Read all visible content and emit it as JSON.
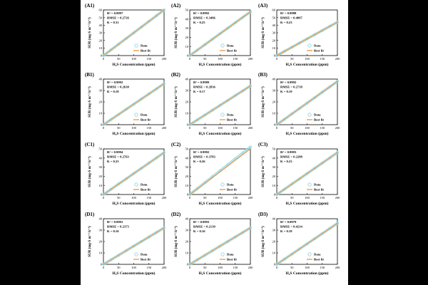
{
  "figure": {
    "xlabel": "H₂S Concentration (ppm)",
    "ylabel": "SUR (mg-S m⁻² h⁻¹)",
    "xticks": [
      "0",
      "50",
      "100",
      "150",
      "200"
    ],
    "legend": {
      "data": "Data",
      "fit": "Best fit"
    },
    "colors": {
      "data": "#9adbe4",
      "fit": "#f08a2c",
      "axis": "#000000",
      "page": "#000000"
    }
  },
  "chart_data": [
    {
      "panel": "(A1)",
      "type": "scatter",
      "ylim": [
        0,
        60
      ],
      "yticks": [
        0,
        10,
        20,
        30,
        40,
        50,
        60
      ],
      "stats": [
        "R² = 0.9997",
        "RMSE = 0.2726",
        "K = 0.31"
      ],
      "x": [
        0,
        25,
        50,
        75,
        100,
        125,
        150,
        175,
        200
      ],
      "y": [
        0,
        7.5,
        15,
        22.5,
        30,
        37.5,
        45,
        52.5,
        60
      ],
      "fit": [
        [
          0,
          0
        ],
        [
          200,
          60
        ]
      ]
    },
    {
      "panel": "(A2)",
      "type": "scatter",
      "ylim": [
        0,
        50
      ],
      "yticks": [
        0,
        10,
        20,
        30,
        40,
        50
      ],
      "stats": [
        "R² = 0.9992",
        "RMSE = 0.3496",
        "K = 0.25"
      ],
      "x": [
        0,
        25,
        50,
        75,
        100,
        125,
        150,
        175,
        200
      ],
      "y": [
        0,
        6,
        12,
        18,
        24,
        30,
        36,
        42,
        48
      ],
      "fit": [
        [
          0,
          0
        ],
        [
          200,
          48
        ]
      ]
    },
    {
      "panel": "(A3)",
      "type": "scatter",
      "ylim": [
        0,
        60
      ],
      "yticks": [
        0,
        10,
        20,
        30,
        40,
        50,
        60
      ],
      "stats": [
        "R² = 0.9988",
        "RMSE = 0.4097",
        "K = 0.23"
      ],
      "x": [
        0,
        25,
        50,
        75,
        100,
        125,
        150,
        175,
        200
      ],
      "y": [
        0,
        5.5,
        11,
        16.5,
        22,
        27.5,
        33,
        38.5,
        44
      ],
      "fit": [
        [
          0,
          0
        ],
        [
          200,
          44
        ]
      ]
    },
    {
      "panel": "(B1)",
      "type": "scatter",
      "ylim": [
        0,
        40
      ],
      "yticks": [
        0,
        10,
        20,
        30,
        40
      ],
      "stats": [
        "R² = 0.9992",
        "RMSE = 0.2630",
        "K = 0.18"
      ],
      "x": [
        0,
        25,
        50,
        75,
        100,
        125,
        150,
        175,
        200
      ],
      "y": [
        0,
        4.5,
        9,
        13.5,
        18,
        22.5,
        27,
        31.5,
        36
      ],
      "fit": [
        [
          0,
          0
        ],
        [
          200,
          36
        ]
      ]
    },
    {
      "panel": "(B2)",
      "type": "scatter",
      "ylim": [
        0,
        40
      ],
      "yticks": [
        0,
        10,
        20,
        30,
        40
      ],
      "stats": [
        "R² = 0.9989",
        "RMSE = 0.2836",
        "K = 0.17"
      ],
      "x": [
        0,
        25,
        50,
        75,
        100,
        125,
        150,
        175,
        200
      ],
      "y": [
        0,
        4.2,
        8.5,
        12.7,
        17,
        21.2,
        25.5,
        29.7,
        34
      ],
      "fit": [
        [
          0,
          0
        ],
        [
          200,
          34
        ]
      ]
    },
    {
      "panel": "(B3)",
      "type": "scatter",
      "ylim": [
        0,
        40
      ],
      "yticks": [
        0,
        10,
        20,
        30,
        40
      ],
      "stats": [
        "R² = 0.9992",
        "RMSE = 0.2718",
        "K = 0.19"
      ],
      "x": [
        0,
        25,
        50,
        75,
        100,
        125,
        150,
        175,
        200
      ],
      "y": [
        0,
        4.7,
        9.5,
        14.2,
        19,
        23.7,
        28.5,
        33.2,
        38
      ],
      "fit": [
        [
          0,
          0
        ],
        [
          200,
          38
        ]
      ]
    },
    {
      "panel": "(C1)",
      "type": "scatter",
      "ylim": [
        0,
        50
      ],
      "yticks": [
        0,
        10,
        20,
        30,
        40,
        50
      ],
      "stats": [
        "R² = 0.9994",
        "RMSE = 0.2763",
        "K = 0.23"
      ],
      "x": [
        0,
        25,
        50,
        75,
        100,
        125,
        150,
        175,
        200
      ],
      "y": [
        0,
        5.7,
        11.5,
        17.2,
        23,
        28.7,
        34.5,
        40.2,
        46
      ],
      "fit": [
        [
          0,
          0
        ],
        [
          200,
          46
        ]
      ]
    },
    {
      "panel": "(C2)",
      "type": "scatter",
      "ylim": [
        0,
        50
      ],
      "yticks": [
        0,
        10,
        20,
        30,
        40,
        50
      ],
      "stats": [
        "R² = 0.9992",
        "RMSE = 0.3783",
        "K = 0.26"
      ],
      "x": [
        0,
        25,
        50,
        75,
        100,
        125,
        150,
        175,
        200
      ],
      "y": [
        0,
        6.5,
        13,
        19.5,
        26,
        32.5,
        39,
        45.5,
        52
      ],
      "fit": [
        [
          0,
          0
        ],
        [
          200,
          52
        ]
      ]
    },
    {
      "panel": "(C3)",
      "type": "scatter",
      "ylim": [
        0,
        50
      ],
      "yticks": [
        0,
        10,
        20,
        30,
        40,
        50
      ],
      "stats": [
        "R² = 0.9993",
        "RMSE = 0.2288",
        "K = 0.23"
      ],
      "x": [
        0,
        25,
        50,
        75,
        100,
        125,
        150,
        175,
        200
      ],
      "y": [
        0,
        5.7,
        11.5,
        17.2,
        23,
        28.7,
        34.5,
        40.2,
        46
      ],
      "fit": [
        [
          0,
          0
        ],
        [
          200,
          46
        ]
      ]
    },
    {
      "panel": "(D1)",
      "type": "scatter",
      "ylim": [
        0,
        40
      ],
      "yticks": [
        0,
        10,
        20,
        30,
        40
      ],
      "stats": [
        "R² = 0.9991",
        "RMSE = 0.2373",
        "K = 0.16"
      ],
      "x": [
        0,
        25,
        50,
        75,
        100,
        125,
        150,
        175,
        200
      ],
      "y": [
        0,
        4,
        8,
        12,
        16,
        20,
        24,
        28,
        32
      ],
      "fit": [
        [
          0,
          0
        ],
        [
          200,
          32
        ]
      ]
    },
    {
      "panel": "(D2)",
      "type": "scatter",
      "ylim": [
        0,
        40
      ],
      "yticks": [
        0,
        10,
        20,
        30,
        40
      ],
      "stats": [
        "R² = 0.9993",
        "RMSE = 0.2139",
        "K = 0.16"
      ],
      "x": [
        0,
        25,
        50,
        75,
        100,
        125,
        150,
        175,
        200
      ],
      "y": [
        0,
        4,
        8,
        12,
        16,
        20,
        24,
        28,
        32
      ],
      "fit": [
        [
          0,
          0
        ],
        [
          200,
          32
        ]
      ]
    },
    {
      "panel": "(D3)",
      "type": "scatter",
      "ylim": [
        0,
        40
      ],
      "yticks": [
        0,
        10,
        20,
        30,
        40
      ],
      "stats": [
        "R² = 0.9979",
        "RMSE = 0.4214",
        "K = 0.18"
      ],
      "x": [
        0,
        25,
        50,
        75,
        100,
        125,
        150,
        175,
        200
      ],
      "y": [
        0,
        4.5,
        9,
        13.5,
        18,
        22.5,
        27,
        31.5,
        36
      ],
      "fit": [
        [
          0,
          0
        ],
        [
          200,
          36
        ]
      ]
    }
  ]
}
